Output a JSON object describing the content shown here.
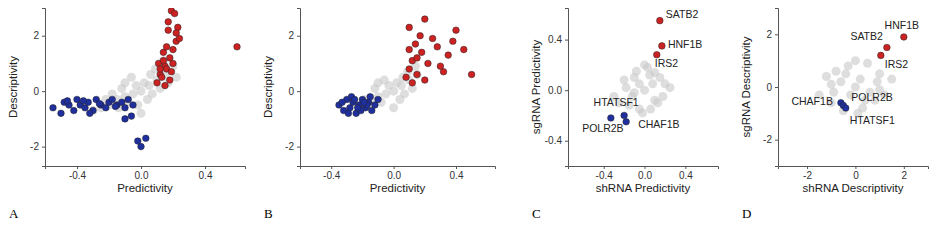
{
  "chart_data": [
    {
      "type": "scatter",
      "panel_label": "A",
      "x_label": "Predictivity",
      "y_label": "Descriptivity",
      "xlim": [
        -0.6,
        0.65
      ],
      "ylim": [
        -2.7,
        3.0
      ],
      "xticks": [
        -0.4,
        {
          "value": 0,
          "label": "0.0"
        },
        0.4
      ],
      "yticks": [
        -2,
        0,
        2
      ],
      "series": [
        {
          "color": "#c8c8c8",
          "x": [
            -0.25,
            -0.2,
            -0.15,
            -0.1,
            -0.05,
            0,
            0.05,
            0.1,
            0.15,
            0.2,
            -0.18,
            -0.12,
            -0.08,
            -0.03,
            0.02,
            0.07,
            0.12,
            0.17,
            -0.22,
            -0.06,
            0.04,
            0.09,
            -0.14,
            0.0,
            0.14,
            -0.3,
            0.22,
            -0.1,
            0.06,
            -0.02
          ],
          "values": [
            -0.6,
            -0.5,
            -0.3,
            -0.2,
            -0.1,
            0,
            0.2,
            0.4,
            0.6,
            0.9,
            -0.1,
            0.1,
            -0.4,
            0.2,
            0.3,
            -0.1,
            0.1,
            0.3,
            -0.3,
            0.5,
            -0.3,
            0.8,
            -0.6,
            -0.8,
            1.1,
            -0.7,
            0.5,
            0.3,
            0.6,
            -0.5
          ]
        },
        {
          "color": "#cc2222",
          "x": [
            0.1,
            0.12,
            0.15,
            0.18,
            0.2,
            0.22,
            0.13,
            0.16,
            0.19,
            0.21,
            0.11,
            0.14,
            0.17,
            0.23,
            0.15,
            0.18,
            0.2,
            0.12,
            0.16,
            0.24,
            0.19,
            0.14,
            0.22,
            0.17,
            0.6
          ],
          "values": [
            0.3,
            0.6,
            0.9,
            1.2,
            1.5,
            1.8,
            0.5,
            0.8,
            2.9,
            2.8,
            1.0,
            1.4,
            2.2,
            2.3,
            0.2,
            0.4,
            1.0,
            0.8,
            1.6,
            1.9,
            0.7,
            1.1,
            2.1,
            2.5,
            1.6
          ]
        },
        {
          "color": "#1f2f9e",
          "x": [
            -0.55,
            -0.5,
            -0.48,
            -0.45,
            -0.42,
            -0.4,
            -0.38,
            -0.35,
            -0.33,
            -0.3,
            -0.28,
            -0.25,
            -0.22,
            -0.2,
            -0.18,
            -0.15,
            -0.12,
            -0.1,
            -0.08,
            -0.05,
            -0.46,
            -0.36,
            -0.26,
            -0.16,
            -0.06,
            -0.32,
            -0.02,
            0.0,
            0.03,
            -0.1
          ],
          "values": [
            -0.6,
            -0.8,
            -0.4,
            -0.5,
            -0.7,
            -0.3,
            -0.5,
            -0.6,
            -0.4,
            -0.7,
            -0.3,
            -0.5,
            -0.6,
            -0.4,
            -0.3,
            -0.5,
            -0.4,
            -0.6,
            -0.3,
            -0.5,
            -0.35,
            -0.35,
            -0.45,
            -0.55,
            -0.9,
            -0.8,
            -1.8,
            -2.0,
            -1.7,
            -1.0
          ]
        }
      ]
    },
    {
      "type": "scatter",
      "panel_label": "B",
      "x_label": "Predictivity",
      "y_label": "Descriptivity",
      "xlim": [
        -0.6,
        0.65
      ],
      "ylim": [
        -2.7,
        3.0
      ],
      "xticks": [
        -0.4,
        {
          "value": 0,
          "label": "0.0"
        },
        0.4
      ],
      "yticks": [
        -2,
        0,
        2
      ],
      "series": [
        {
          "color": "#c8c8c8",
          "x": [
            -0.2,
            -0.15,
            -0.1,
            -0.05,
            0,
            0.05,
            0.1,
            0.15,
            -0.12,
            -0.08,
            -0.03,
            0.02,
            0.07,
            0.12,
            -0.18,
            -0.06,
            0.04,
            0.09,
            0,
            0.14,
            -0.1,
            0.06
          ],
          "values": [
            -0.5,
            -0.3,
            -0.2,
            -0.1,
            0,
            0.2,
            0.4,
            0.6,
            0.1,
            -0.4,
            0.2,
            0.3,
            -0.1,
            0.1,
            -0.3,
            0.4,
            -0.3,
            0.7,
            -0.6,
            0.9,
            0.3,
            0.5
          ]
        },
        {
          "color": "#cc2222",
          "x": [
            0.08,
            0.1,
            0.12,
            0.15,
            0.18,
            0.2,
            0.25,
            0.3,
            0.35,
            0.4,
            0.45,
            0.5,
            0.1,
            0.14,
            0.22,
            0.28,
            0.12,
            0.17,
            0.32,
            0.38,
            0.15,
            0.1,
            0.2
          ],
          "values": [
            0.5,
            0.8,
            1.1,
            0.6,
            1.4,
            2.6,
            1.9,
            0.9,
            1.3,
            2.2,
            1.5,
            0.6,
            2.3,
            1.7,
            1.0,
            1.6,
            0.3,
            2.0,
            0.7,
            1.8,
            1.2,
            1.5,
            0.4
          ]
        },
        {
          "color": "#1f2f9e",
          "x": [
            -0.35,
            -0.32,
            -0.3,
            -0.28,
            -0.26,
            -0.24,
            -0.22,
            -0.2,
            -0.18,
            -0.16,
            -0.14,
            -0.12,
            -0.1,
            -0.33,
            -0.27,
            -0.21,
            -0.15,
            -0.29,
            -0.23,
            -0.17,
            -0.25,
            -0.19
          ],
          "values": [
            -0.5,
            -0.7,
            -0.3,
            -0.6,
            -0.4,
            -0.8,
            -0.5,
            -0.3,
            -0.6,
            -0.4,
            -0.7,
            -0.5,
            -0.3,
            -0.4,
            -0.2,
            -0.7,
            -0.2,
            -0.8,
            -0.6,
            -0.5,
            -0.3,
            -0.4
          ]
        }
      ]
    },
    {
      "type": "scatter",
      "panel_label": "C",
      "x_label": "shRNA Predictivity",
      "y_label": "sgRNA Predictivity",
      "xlim": [
        -0.75,
        0.72
      ],
      "ylim": [
        -0.6,
        0.65
      ],
      "xticks": [
        -0.4,
        {
          "value": 0,
          "label": "0.0"
        },
        0.4
      ],
      "yticks": [
        -0.4,
        {
          "value": 0,
          "label": "0.0"
        },
        0.4
      ],
      "series": [
        {
          "color": "#c8c8c8",
          "x": [
            -0.3,
            -0.25,
            -0.2,
            -0.15,
            -0.1,
            -0.05,
            0,
            0.05,
            0.1,
            0.15,
            0.2,
            0.25,
            -0.12,
            -0.08,
            -0.02,
            0.03,
            0.08,
            0.13,
            -0.18,
            0.18,
            0,
            -0.05,
            0.06,
            -0.1,
            0.1
          ],
          "values": [
            -0.05,
            -0.1,
            0.08,
            -0.12,
            0.1,
            -0.15,
            0,
            0.12,
            -0.08,
            0.1,
            0.05,
            0.02,
            -0.05,
            0.15,
            -0.18,
            0.18,
            0.05,
            -0.1,
            0.02,
            -0.05,
            0.2,
            0.05,
            -0.15,
            -0.02,
            0.14
          ]
        },
        {
          "color": "#cc2222",
          "x": [
            0.15,
            0.17,
            0.12
          ],
          "values": [
            0.55,
            0.35,
            0.28
          ]
        },
        {
          "color": "#1f2f9e",
          "x": [
            -0.33,
            -0.2,
            -0.18
          ],
          "values": [
            -0.22,
            -0.2,
            -0.25
          ]
        }
      ],
      "annotations": [
        {
          "text": "SATB2",
          "x": 0.15,
          "y": 0.55
        },
        {
          "text": "HNF1B",
          "x": 0.17,
          "y": 0.35
        },
        {
          "text": "IRS2",
          "x": 0.12,
          "y": 0.28
        },
        {
          "text": "HTATSF1",
          "x": -0.2,
          "y": -0.2
        },
        {
          "text": "CHAF1B",
          "x": -0.18,
          "y": -0.25
        },
        {
          "text": "POLR2B",
          "x": -0.33,
          "y": -0.22
        }
      ]
    },
    {
      "type": "scatter",
      "panel_label": "D",
      "x_label": "shRNA Descriptivity",
      "y_label": "sgRNA Descriptivity",
      "xlim": [
        -3.2,
        3.0
      ],
      "ylim": [
        -3.0,
        3.0
      ],
      "xticks": [
        -2,
        0,
        2
      ],
      "yticks": [
        -2,
        0,
        2
      ],
      "series": [
        {
          "color": "#c8c8c8",
          "x": [
            -1.5,
            -1.2,
            -1,
            -0.8,
            -0.5,
            -0.3,
            0,
            0.3,
            0.5,
            0.8,
            1,
            1.2,
            1.5,
            -0.6,
            -0.2,
            0.2,
            0.6,
            -1,
            1,
            0,
            -0.4,
            0.4,
            -0.9,
            0.9,
            0.1
          ],
          "values": [
            -0.3,
            0.4,
            -0.6,
            0.6,
            -0.9,
            0.8,
            0,
            -0.8,
            0.9,
            -0.5,
            0.5,
            -0.3,
            0.3,
            0.2,
            -0.3,
            0.3,
            -0.2,
            0.1,
            -0.1,
            1.0,
            0.5,
            -0.5,
            -0.2,
            0.2,
            -1.0
          ]
        },
        {
          "color": "#cc2222",
          "x": [
            2.0,
            1.3,
            1.05
          ],
          "values": [
            1.9,
            1.5,
            1.2
          ]
        },
        {
          "color": "#1f2f9e",
          "x": [
            -0.6,
            -0.5,
            -0.4
          ],
          "values": [
            -0.6,
            -0.7,
            -0.8
          ]
        }
      ],
      "annotations": [
        {
          "text": "HNF1B",
          "x": 2.0,
          "y": 1.9
        },
        {
          "text": "SATB2",
          "x": 1.3,
          "y": 1.5
        },
        {
          "text": "IRS2",
          "x": 1.05,
          "y": 1.2
        },
        {
          "text": "CHAF1B",
          "x": -0.6,
          "y": -0.6
        },
        {
          "text": "POLR2B",
          "x": -0.5,
          "y": -0.7
        },
        {
          "text": "HTATSF1",
          "x": -0.4,
          "y": -0.8
        }
      ]
    }
  ]
}
